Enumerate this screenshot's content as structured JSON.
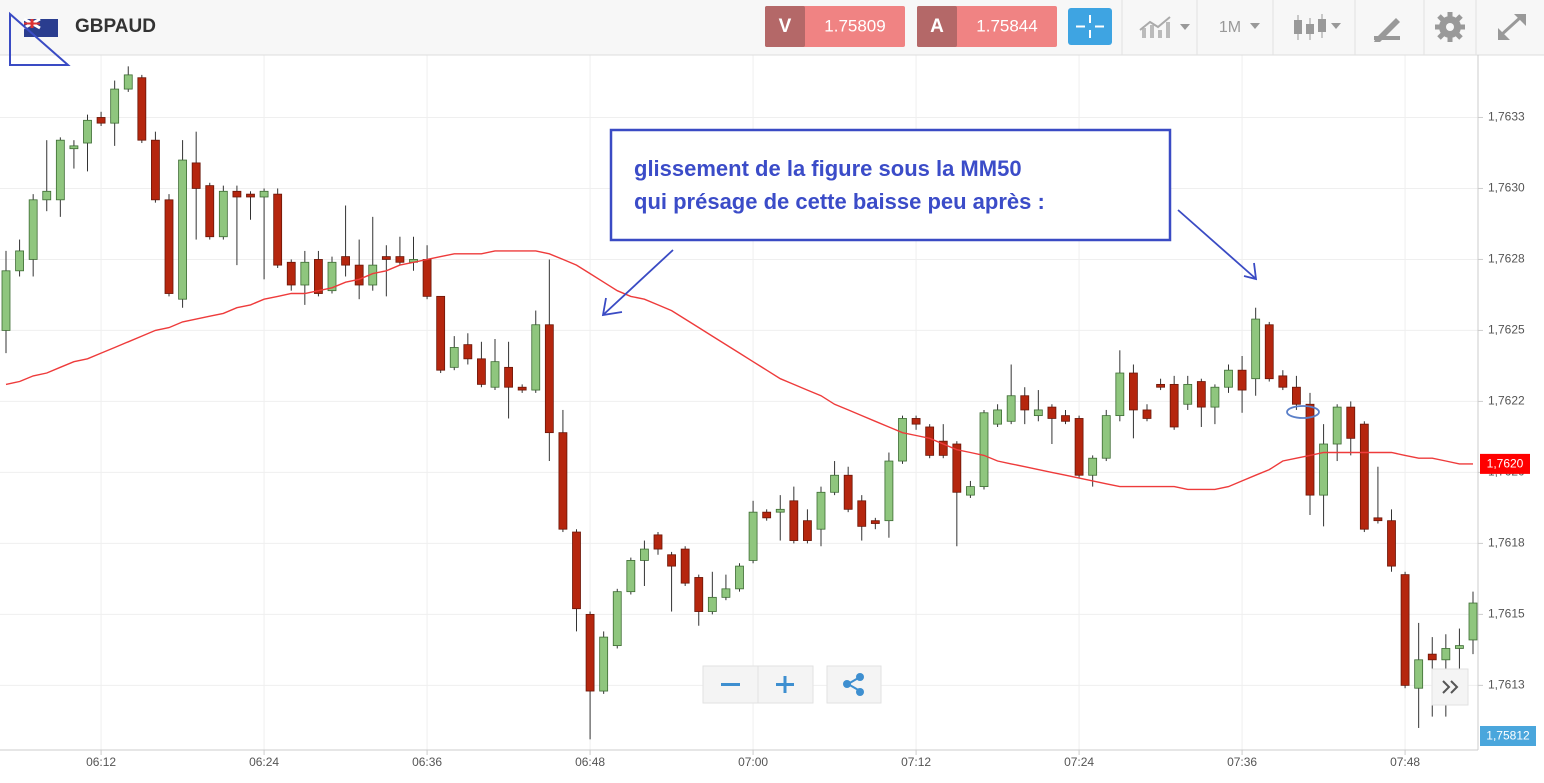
{
  "header": {
    "symbol": "GBPAUD",
    "bid": {
      "letter": "V",
      "price": 1.75809
    },
    "ask": {
      "letter": "A",
      "price": 1.75844
    },
    "timeframe": "1M"
  },
  "chart_data": {
    "type": "candlestick",
    "annotation": [
      "glissement de la figure sous la MM50",
      "qui présage de cette baisse peu après :"
    ],
    "up_color": "#8fc67e",
    "down_color": "#b5260e",
    "grid": true,
    "ylim": [
      1.76104,
      1.76347
    ],
    "yticks": [
      {
        "value": 1.76125,
        "label": "1,7613"
      },
      {
        "value": 1.7615,
        "label": "1,7615"
      },
      {
        "value": 1.76175,
        "label": "1,7618"
      },
      {
        "value": 1.762,
        "label": "1,7620"
      },
      {
        "value": 1.76225,
        "label": "1,7622"
      },
      {
        "value": 1.7625,
        "label": "1,7625"
      },
      {
        "value": 1.76275,
        "label": "1,7628"
      },
      {
        "value": 1.763,
        "label": "1,7630"
      },
      {
        "value": 1.76325,
        "label": "1,7633"
      }
    ],
    "xticks": [
      "06:12",
      "06:24",
      "06:36",
      "06:48",
      "07:00",
      "07:12",
      "07:24",
      "07:36",
      "07:48"
    ],
    "last_price_label": "1,75812",
    "x": [
      "06:05",
      "06:06",
      "06:07",
      "06:08",
      "06:09",
      "06:10",
      "06:11",
      "06:12",
      "06:13",
      "06:14",
      "06:15",
      "06:16",
      "06:17",
      "06:18",
      "06:19",
      "06:20",
      "06:21",
      "06:22",
      "06:23",
      "06:24",
      "06:25",
      "06:26",
      "06:27",
      "06:28",
      "06:29",
      "06:30",
      "06:31",
      "06:32",
      "06:33",
      "06:34",
      "06:35",
      "06:36",
      "06:37",
      "06:38",
      "06:39",
      "06:40",
      "06:41",
      "06:42",
      "06:43",
      "06:44",
      "06:45",
      "06:46",
      "06:47",
      "06:48",
      "06:49",
      "06:50",
      "06:51",
      "06:52",
      "06:53",
      "06:54",
      "06:55",
      "06:56",
      "06:57",
      "06:58",
      "06:59",
      "07:00",
      "07:01",
      "07:02",
      "07:03",
      "07:04",
      "07:05",
      "07:06",
      "07:07",
      "07:08",
      "07:09",
      "07:10",
      "07:11",
      "07:12",
      "07:13",
      "07:14",
      "07:15",
      "07:16",
      "07:17",
      "07:18",
      "07:19",
      "07:20",
      "07:21",
      "07:22",
      "07:23",
      "07:24",
      "07:25",
      "07:26",
      "07:27",
      "07:28",
      "07:29",
      "07:30",
      "07:31",
      "07:32",
      "07:33",
      "07:34",
      "07:35",
      "07:36",
      "07:37",
      "07:38",
      "07:39",
      "07:40",
      "07:41",
      "07:42",
      "07:43",
      "07:44",
      "07:45",
      "07:46",
      "07:47",
      "07:48",
      "07:49",
      "07:50",
      "07:51",
      "07:52",
      "07:53"
    ],
    "open": [
      1.7625,
      1.76271,
      1.76275,
      1.76296,
      1.76296,
      1.76314,
      1.76316,
      1.76325,
      1.76323,
      1.76335,
      1.76339,
      1.76317,
      1.76296,
      1.76261,
      1.76309,
      1.76301,
      1.76283,
      1.76299,
      1.76298,
      1.76297,
      1.76298,
      1.76274,
      1.76266,
      1.76275,
      1.76264,
      1.76276,
      1.76273,
      1.76266,
      1.76276,
      1.76276,
      1.76274,
      1.76275,
      1.76262,
      1.76237,
      1.76245,
      1.7624,
      1.7623,
      1.76237,
      1.7623,
      1.76229,
      1.76252,
      1.76214,
      1.76179,
      1.7615,
      1.76123,
      1.76139,
      1.76158,
      1.76169,
      1.76178,
      1.76171,
      1.76173,
      1.76163,
      1.76151,
      1.76156,
      1.76159,
      1.76169,
      1.76186,
      1.76186,
      1.7619,
      1.76183,
      1.7618,
      1.76193,
      1.76199,
      1.7619,
      1.76183,
      1.76183,
      1.76204,
      1.76219,
      1.76216,
      1.76211,
      1.7621,
      1.76192,
      1.76195,
      1.76217,
      1.76218,
      1.76227,
      1.7622,
      1.76223,
      1.7622,
      1.76219,
      1.76199,
      1.76205,
      1.7622,
      1.76235,
      1.76222,
      1.76231,
      1.76231,
      1.76224,
      1.76232,
      1.76223,
      1.7623,
      1.76236,
      1.76233,
      1.76252,
      1.76234,
      1.7623,
      1.76224,
      1.76192,
      1.7621,
      1.76223,
      1.76217,
      1.76184,
      1.76183,
      1.76164,
      1.76124,
      1.76136,
      1.76134,
      1.76138,
      1.76141
    ],
    "high": [
      1.76278,
      1.76282,
      1.76298,
      1.76317,
      1.76318,
      1.76317,
      1.76326,
      1.76327,
      1.76338,
      1.76343,
      1.7634,
      1.7632,
      1.76298,
      1.76317,
      1.7632,
      1.76302,
      1.76301,
      1.76301,
      1.76299,
      1.763,
      1.763,
      1.76275,
      1.76278,
      1.76278,
      1.76276,
      1.76294,
      1.76282,
      1.7629,
      1.7628,
      1.76283,
      1.76283,
      1.7628,
      1.76262,
      1.76248,
      1.76249,
      1.76246,
      1.76247,
      1.76246,
      1.76231,
      1.76257,
      1.76275,
      1.76222,
      1.7618,
      1.76151,
      1.76144,
      1.76159,
      1.7617,
      1.76176,
      1.76179,
      1.76172,
      1.76174,
      1.76164,
      1.76165,
      1.76164,
      1.76168,
      1.7619,
      1.76187,
      1.76192,
      1.76195,
      1.76187,
      1.76195,
      1.76204,
      1.76202,
      1.76192,
      1.76184,
      1.76207,
      1.7622,
      1.7622,
      1.76217,
      1.76217,
      1.76211,
      1.76197,
      1.76222,
      1.76224,
      1.76238,
      1.7623,
      1.76229,
      1.76224,
      1.76222,
      1.7622,
      1.76206,
      1.76222,
      1.76243,
      1.76238,
      1.76224,
      1.76233,
      1.76234,
      1.76234,
      1.76233,
      1.76231,
      1.76238,
      1.76241,
      1.76258,
      1.76253,
      1.76236,
      1.76234,
      1.76228,
      1.76217,
      1.76224,
      1.76225,
      1.76218,
      1.76202,
      1.76187,
      1.76165,
      1.76147,
      1.76142,
      1.76143,
      1.76145,
      1.76158
    ],
    "low": [
      1.76242,
      1.76269,
      1.76269,
      1.76292,
      1.7629,
      1.76307,
      1.76306,
      1.76322,
      1.76315,
      1.76334,
      1.76316,
      1.76295,
      1.76262,
      1.76258,
      1.76282,
      1.76282,
      1.76282,
      1.76273,
      1.76289,
      1.76268,
      1.76272,
      1.76264,
      1.76259,
      1.76262,
      1.76263,
      1.76269,
      1.76261,
      1.76264,
      1.76262,
      1.76273,
      1.76271,
      1.76261,
      1.76235,
      1.76236,
      1.76238,
      1.7623,
      1.76229,
      1.76219,
      1.76228,
      1.76228,
      1.76204,
      1.76179,
      1.76144,
      1.76106,
      1.76122,
      1.76138,
      1.76157,
      1.7616,
      1.76171,
      1.76151,
      1.7616,
      1.76146,
      1.7615,
      1.76155,
      1.76158,
      1.76168,
      1.76183,
      1.76176,
      1.76175,
      1.76175,
      1.76174,
      1.76192,
      1.76186,
      1.76176,
      1.7618,
      1.76177,
      1.76203,
      1.76215,
      1.76205,
      1.76205,
      1.76174,
      1.76191,
      1.76194,
      1.76216,
      1.76217,
      1.76217,
      1.76218,
      1.7621,
      1.76217,
      1.76198,
      1.76195,
      1.76204,
      1.76218,
      1.76212,
      1.76218,
      1.76229,
      1.76215,
      1.76222,
      1.76216,
      1.76217,
      1.76228,
      1.76221,
      1.76227,
      1.76232,
      1.76229,
      1.76222,
      1.76185,
      1.76181,
      1.76204,
      1.76206,
      1.76179,
      1.76182,
      1.76165,
      1.76124,
      1.7611,
      1.76114,
      1.76114,
      1.7613,
      1.76136
    ],
    "close": [
      1.76271,
      1.76278,
      1.76296,
      1.76299,
      1.76317,
      1.76315,
      1.76324,
      1.76323,
      1.76335,
      1.7634,
      1.76317,
      1.76296,
      1.76263,
      1.7631,
      1.763,
      1.76283,
      1.76299,
      1.76297,
      1.76297,
      1.76299,
      1.76273,
      1.76266,
      1.76274,
      1.76263,
      1.76274,
      1.76273,
      1.76266,
      1.76273,
      1.76275,
      1.76274,
      1.76275,
      1.76262,
      1.76236,
      1.76244,
      1.7624,
      1.76231,
      1.76239,
      1.7623,
      1.76229,
      1.76252,
      1.76214,
      1.7618,
      1.76152,
      1.76123,
      1.76142,
      1.76158,
      1.76169,
      1.76173,
      1.76173,
      1.76167,
      1.76161,
      1.76151,
      1.76156,
      1.76159,
      1.76167,
      1.76186,
      1.76184,
      1.76187,
      1.76176,
      1.76176,
      1.76193,
      1.76199,
      1.76187,
      1.76181,
      1.76182,
      1.76204,
      1.76219,
      1.76217,
      1.76206,
      1.76206,
      1.76193,
      1.76195,
      1.76221,
      1.76222,
      1.76227,
      1.76222,
      1.76222,
      1.76219,
      1.76218,
      1.76199,
      1.76205,
      1.7622,
      1.76235,
      1.76222,
      1.76219,
      1.7623,
      1.76216,
      1.76231,
      1.76223,
      1.7623,
      1.76236,
      1.76229,
      1.76254,
      1.76233,
      1.7623,
      1.76224,
      1.76192,
      1.7621,
      1.76223,
      1.76212,
      1.7618,
      1.76183,
      1.76167,
      1.76125,
      1.76134,
      1.76134,
      1.76138,
      1.76139,
      1.76154
    ],
    "ma": {
      "color": "#ee3b3b",
      "tag": "1,7620",
      "values": [
        1.76231,
        1.76232,
        1.76234,
        1.76235,
        1.76237,
        1.76239,
        1.7624,
        1.76242,
        1.76244,
        1.76246,
        1.76248,
        1.7625,
        1.76251,
        1.76253,
        1.76254,
        1.76255,
        1.76256,
        1.76258,
        1.76259,
        1.76261,
        1.76262,
        1.76263,
        1.76263,
        1.76264,
        1.76265,
        1.76267,
        1.76268,
        1.7627,
        1.76271,
        1.76273,
        1.76274,
        1.76275,
        1.76276,
        1.76277,
        1.76277,
        1.76277,
        1.76278,
        1.76278,
        1.76278,
        1.76278,
        1.76277,
        1.76275,
        1.76273,
        1.7627,
        1.76267,
        1.76264,
        1.76262,
        1.76261,
        1.76259,
        1.76257,
        1.76254,
        1.76251,
        1.76248,
        1.76245,
        1.76242,
        1.76239,
        1.76236,
        1.76233,
        1.76231,
        1.76229,
        1.76227,
        1.76224,
        1.76222,
        1.7622,
        1.76218,
        1.76216,
        1.76214,
        1.76213,
        1.76212,
        1.7621,
        1.76208,
        1.76207,
        1.76206,
        1.76204,
        1.76203,
        1.76202,
        1.76201,
        1.762,
        1.76199,
        1.76198,
        1.76197,
        1.76196,
        1.76195,
        1.76195,
        1.76195,
        1.76195,
        1.76195,
        1.76194,
        1.76194,
        1.76194,
        1.76195,
        1.76197,
        1.76199,
        1.76201,
        1.76204,
        1.76205,
        1.76206,
        1.76207,
        1.76207,
        1.76207,
        1.76207,
        1.76207,
        1.76207,
        1.76206,
        1.76205,
        1.76205,
        1.76204,
        1.76203,
        1.76203
      ]
    }
  }
}
